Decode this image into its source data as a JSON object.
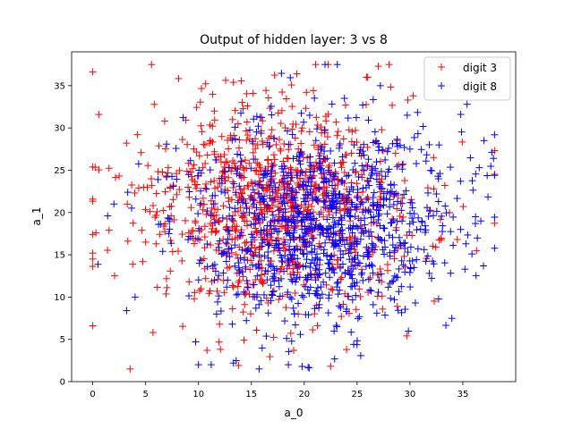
{
  "chart_data": {
    "type": "scatter",
    "title": "Output of hidden layer: 3 vs 8",
    "xlabel": "a_0",
    "ylabel": "a_1",
    "xlim": [
      -2,
      40
    ],
    "ylim": [
      0,
      39
    ],
    "xticks": [
      0,
      5,
      10,
      15,
      20,
      25,
      30,
      35
    ],
    "yticks": [
      0,
      5,
      10,
      15,
      20,
      25,
      30,
      35
    ],
    "grid": false,
    "legend_position": "top-right",
    "marker": "plus",
    "series": [
      {
        "name": "digit 3",
        "color": "#ff0000",
        "distribution": {
          "count": 1000,
          "mean": [
            17.5,
            20.8
          ],
          "std": [
            6.6,
            5.9
          ],
          "seed": 3
        },
        "extra_points": [
          [
            0.0,
            6.6
          ],
          [
            0.0,
            14.5
          ],
          [
            0.0,
            15.2
          ],
          [
            0.0,
            17.4
          ],
          [
            0.3,
            17.6
          ],
          [
            6.8,
            30.8
          ],
          [
            11.5,
            32.0
          ],
          [
            13.3,
            35.4
          ],
          [
            19.3,
            36.4
          ],
          [
            26.0,
            36.0
          ],
          [
            27.0,
            37.3
          ],
          [
            29.8,
            33.3
          ],
          [
            30.3,
            33.8
          ],
          [
            10.8,
            3.7
          ],
          [
            14.3,
            4.9
          ],
          [
            19.0,
            3.7
          ],
          [
            24.0,
            3.8
          ],
          [
            9.6,
            9.8
          ]
        ]
      },
      {
        "name": "digit 8",
        "color": "#0000ff",
        "distribution": {
          "count": 1000,
          "mean": [
            21.5,
            18.8
          ],
          "std": [
            6.3,
            5.9
          ],
          "seed": 8
        },
        "extra_points": [
          [
            10.0,
            2.0
          ],
          [
            11.2,
            2.0
          ],
          [
            13.3,
            2.2
          ],
          [
            18.5,
            2.0
          ],
          [
            19.8,
            1.8
          ],
          [
            35.2,
            13.3
          ],
          [
            37.0,
            28.5
          ],
          [
            37.9,
            26.4
          ],
          [
            36.7,
            19.0
          ],
          [
            36.2,
            19.5
          ],
          [
            35.4,
            32.8
          ],
          [
            34.8,
            31.6
          ],
          [
            2.0,
            21.0
          ],
          [
            3.2,
            8.4
          ],
          [
            4.0,
            10.0
          ],
          [
            23.8,
            33.5
          ],
          [
            27.2,
            35.0
          ],
          [
            30.0,
            27.5
          ],
          [
            32.7,
            21.3
          ]
        ]
      }
    ]
  }
}
